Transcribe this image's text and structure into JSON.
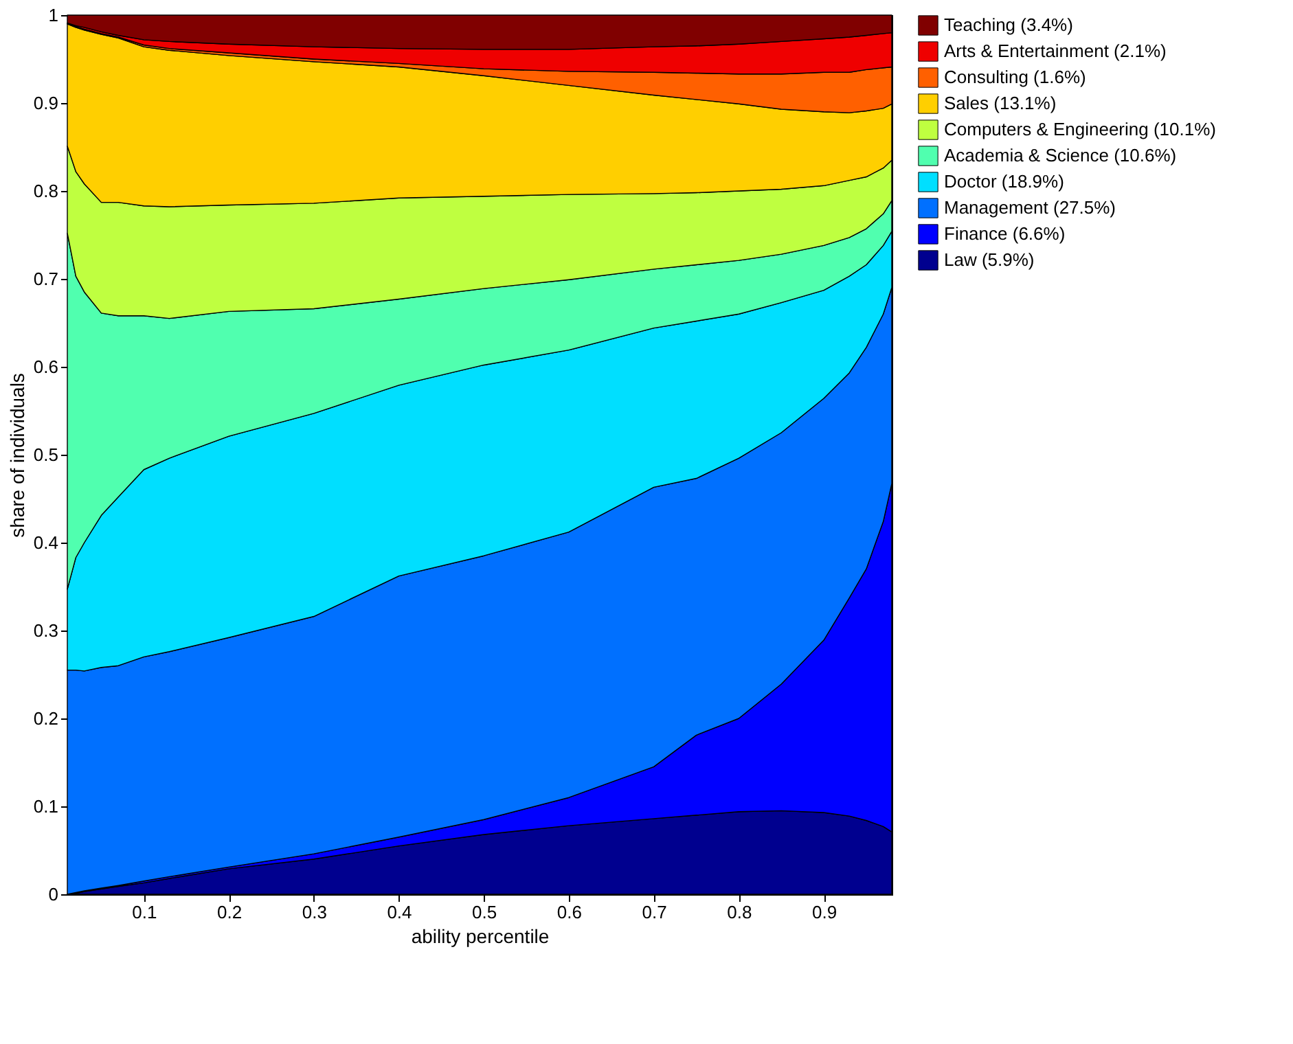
{
  "chart_data": {
    "type": "area",
    "stacked": true,
    "xlabel": "ability percentile",
    "ylabel": "share of individuals",
    "x": [
      0.01,
      0.02,
      0.03,
      0.05,
      0.07,
      0.1,
      0.13,
      0.2,
      0.3,
      0.4,
      0.5,
      0.6,
      0.7,
      0.75,
      0.8,
      0.85,
      0.9,
      0.93,
      0.95,
      0.97,
      0.98
    ],
    "xlim": [
      0.01,
      0.98
    ],
    "xticks": [
      0.1,
      0.2,
      0.3,
      0.4,
      0.5,
      0.6,
      0.7,
      0.8,
      0.9
    ],
    "ylim": [
      0,
      1
    ],
    "yticks": [
      0,
      0.1,
      0.2,
      0.3,
      0.4,
      0.5,
      0.6,
      0.7,
      0.8,
      0.9,
      1
    ],
    "legend": "right",
    "series": [
      {
        "name": "Law (5.9%)",
        "color": "#00008f",
        "values": [
          0,
          0.001,
          0.003,
          0.006,
          0.009,
          0.013,
          0.018,
          0.029,
          0.04,
          0.055,
          0.068,
          0.078,
          0.086,
          0.09,
          0.094,
          0.095,
          0.093,
          0.089,
          0.084,
          0.077,
          0.071
        ]
      },
      {
        "name": "Finance (6.6%)",
        "color": "#0000ff",
        "values": [
          0,
          0.001,
          0.001,
          0.001,
          0.001,
          0.002,
          0.002,
          0.002,
          0.006,
          0.01,
          0.017,
          0.032,
          0.059,
          0.091,
          0.106,
          0.144,
          0.196,
          0.248,
          0.286,
          0.347,
          0.396
        ]
      },
      {
        "name": "Management (27.5%)",
        "color": "#0070ff",
        "values": [
          0.255,
          0.253,
          0.25,
          0.251,
          0.25,
          0.255,
          0.256,
          0.261,
          0.27,
          0.297,
          0.3,
          0.302,
          0.318,
          0.292,
          0.296,
          0.286,
          0.275,
          0.256,
          0.252,
          0.236,
          0.223
        ]
      },
      {
        "name": "Doctor (18.9%)",
        "color": "#00dfff",
        "values": [
          0.092,
          0.128,
          0.146,
          0.173,
          0.192,
          0.213,
          0.22,
          0.229,
          0.231,
          0.217,
          0.217,
          0.207,
          0.181,
          0.179,
          0.164,
          0.148,
          0.123,
          0.11,
          0.094,
          0.078,
          0.064
        ]
      },
      {
        "name": "Academia & Science (10.6%)",
        "color": "#50ffaf",
        "values": [
          0.405,
          0.32,
          0.285,
          0.23,
          0.206,
          0.175,
          0.159,
          0.142,
          0.119,
          0.098,
          0.087,
          0.08,
          0.067,
          0.064,
          0.061,
          0.055,
          0.051,
          0.044,
          0.041,
          0.036,
          0.035
        ]
      },
      {
        "name": "Computers & Engineering (10.1%)",
        "color": "#bfff40",
        "values": [
          0.099,
          0.119,
          0.123,
          0.126,
          0.129,
          0.125,
          0.127,
          0.121,
          0.12,
          0.115,
          0.105,
          0.097,
          0.086,
          0.082,
          0.079,
          0.074,
          0.068,
          0.065,
          0.059,
          0.052,
          0.046
        ]
      },
      {
        "name": "Sales (13.1%)",
        "color": "#ffcf00",
        "values": [
          0.139,
          0.164,
          0.175,
          0.191,
          0.187,
          0.181,
          0.178,
          0.17,
          0.161,
          0.149,
          0.137,
          0.124,
          0.112,
          0.106,
          0.099,
          0.091,
          0.084,
          0.077,
          0.075,
          0.068,
          0.064
        ]
      },
      {
        "name": "Consulting (1.6%)",
        "color": "#ff6000",
        "values": [
          0,
          0.001,
          0.001,
          0.001,
          0.001,
          0.002,
          0.002,
          0.003,
          0.003,
          0.004,
          0.008,
          0.016,
          0.026,
          0.03,
          0.034,
          0.04,
          0.045,
          0.046,
          0.047,
          0.046,
          0.042
        ]
      },
      {
        "name": "Arts & Entertainment (2.1%)",
        "color": "#ef0000",
        "values": [
          0.001,
          0.001,
          0.002,
          0.002,
          0.002,
          0.006,
          0.008,
          0.01,
          0.014,
          0.017,
          0.022,
          0.025,
          0.029,
          0.031,
          0.034,
          0.037,
          0.038,
          0.04,
          0.039,
          0.039,
          0.039
        ]
      },
      {
        "name": "Teaching (3.4%)",
        "color": "#800000",
        "values": [
          0.009,
          0.012,
          0.014,
          0.019,
          0.023,
          0.028,
          0.03,
          0.033,
          0.036,
          0.038,
          0.039,
          0.039,
          0.036,
          0.035,
          0.033,
          0.03,
          0.027,
          0.025,
          0.023,
          0.021,
          0.02
        ]
      }
    ]
  }
}
